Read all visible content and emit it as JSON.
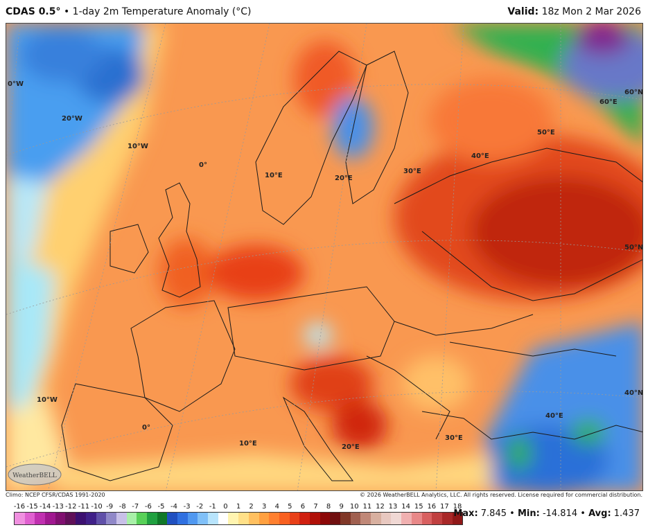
{
  "header": {
    "product": "CDAS 0.5°",
    "separator": " • ",
    "subtitle": "1-day 2m Temperature Anomaly (°C)",
    "valid_label": "Valid:",
    "valid_time": "18z Mon 2 Mar 2026"
  },
  "map": {
    "region": "Europe",
    "graticule_labels": {
      "lon_0w_top": "0°W",
      "lon_20w": "20°W",
      "lon_10w_top": "10°W",
      "lon_0_top": "0°",
      "lon_10e_top": "10°E",
      "lon_20e_top": "20°E",
      "lon_30e_top": "30°E",
      "lon_40e_top": "40°E",
      "lon_50e": "50°E",
      "lon_60e": "60°E",
      "lat_60n": "60°N",
      "lat_50n": "50°N",
      "lat_40n": "40°N",
      "lon_10w_bottom": "10°W",
      "lon_0_bottom": "0°",
      "lon_10e_bottom": "10°E",
      "lon_20e_bottom": "20°E",
      "lon_30e_bottom": "30°E",
      "lon_40e_bottom": "40°E"
    },
    "logo_text": "WeatherBELL"
  },
  "footer": {
    "climo": "Climo: NCEP CFSR/CDAS 1991-2020",
    "copyright": "© 2026 WeatherBELL Analytics, LLC. All rights reserved. License required for commercial distribution."
  },
  "legend": {
    "ticks": [
      "-16",
      "-15",
      "-14",
      "-13",
      "-12",
      "-11",
      "-10",
      "-9",
      "-8",
      "-7",
      "-6",
      "-5",
      "-4",
      "-3",
      "-2",
      "-1",
      "0",
      "1",
      "2",
      "3",
      "4",
      "5",
      "6",
      "7",
      "8",
      "9",
      "10",
      "11",
      "12",
      "13",
      "14",
      "15",
      "16",
      "17",
      "18"
    ],
    "colors": [
      "#f090e0",
      "#e060d0",
      "#c030b0",
      "#a01890",
      "#801070",
      "#601058",
      "#3c1070",
      "#402088",
      "#6050a8",
      "#9088c8",
      "#c8c0e8",
      "#a8f0a8",
      "#58d058",
      "#20a040",
      "#107828",
      "#2050c0",
      "#3070e0",
      "#5098f0",
      "#80c0f8",
      "#b8e4fc",
      "#ffffff",
      "#fff4b0",
      "#ffe088",
      "#ffc060",
      "#ffa040",
      "#ff8030",
      "#f86020",
      "#e84018",
      "#d02010",
      "#b01008",
      "#8c0808",
      "#701010",
      "#803828",
      "#a06050",
      "#c08878",
      "#d8b0a0",
      "#e8c8c0",
      "#f0d8d4",
      "#f0b0b0",
      "#e88888",
      "#d86060",
      "#c04040",
      "#a82828",
      "#901818"
    ]
  },
  "stats": {
    "max_label": "Max:",
    "max_value": "7.845",
    "min_label": "Min:",
    "min_value": "-14.814",
    "avg_label": "Avg:",
    "avg_value": "1.437",
    "sep": " • "
  }
}
